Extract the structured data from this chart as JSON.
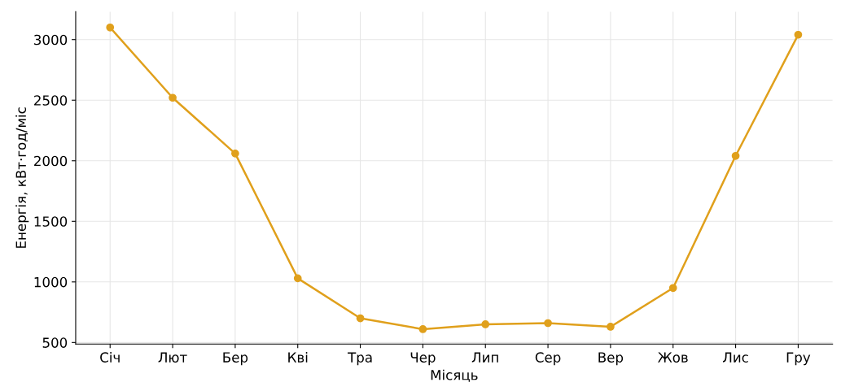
{
  "chart_data": {
    "type": "line",
    "xlabel": "Місяць",
    "ylabel": "Енергія, кВт·год/міс",
    "categories": [
      "Січ",
      "Лют",
      "Бер",
      "Кві",
      "Тра",
      "Чер",
      "Лип",
      "Сер",
      "Вер",
      "Жов",
      "Лис",
      "Гру"
    ],
    "series": [
      {
        "color": "#e0a01c",
        "values": [
          3100,
          2520,
          2060,
          1030,
          700,
          610,
          650,
          660,
          630,
          950,
          2040,
          3040
        ]
      }
    ],
    "ylim": [
      487,
      3230
    ],
    "yticks": [
      500,
      1000,
      1500,
      2000,
      2500,
      3000
    ],
    "grid": true,
    "marker": "circle",
    "line_style": "solid"
  }
}
